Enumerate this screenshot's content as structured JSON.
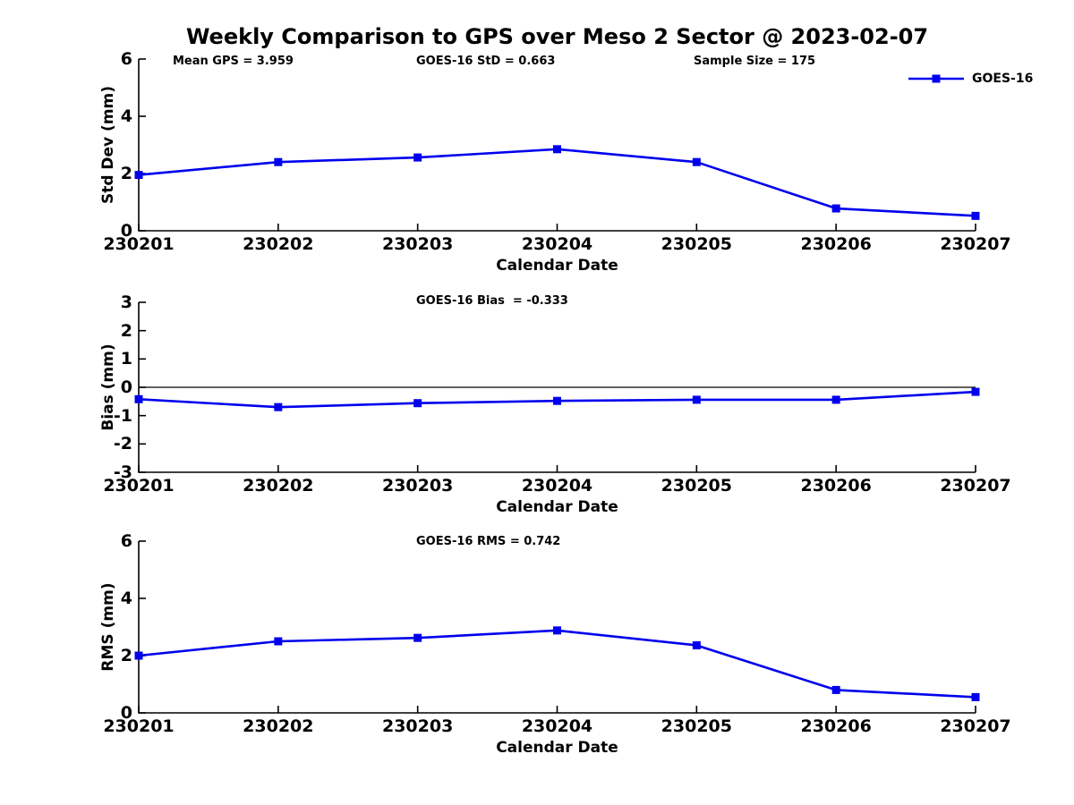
{
  "figure": {
    "title": "Weekly Comparison to GPS over Meso 2 Sector @ 2023-02-07"
  },
  "colors": {
    "series": "#0000EE",
    "axis": "#000000",
    "zero_line": "#000000",
    "text": "#000000",
    "background": "#FFFFFF"
  },
  "legend": {
    "label": "GOES-16",
    "position": "top-right",
    "marker": "filled-square"
  },
  "chart_data": [
    {
      "type": "line",
      "name": "std-dev-vs-date",
      "ylabel": "Std Dev (mm)",
      "xlabel": "Calendar Date",
      "ylim": [
        0,
        6
      ],
      "yticks": [
        0,
        2,
        4,
        6
      ],
      "grid": false,
      "zero_line": false,
      "legend_entry": "GOES-16",
      "categories": [
        "230201",
        "230202",
        "230203",
        "230204",
        "230205",
        "230206",
        "230207"
      ],
      "series": [
        {
          "name": "GOES-16",
          "values": [
            1.95,
            2.4,
            2.56,
            2.85,
            2.4,
            0.78,
            0.52
          ]
        }
      ],
      "annotations": [
        "Mean GPS = 3.959",
        "GOES-16 StD = 0.663",
        "Sample Size = 175"
      ]
    },
    {
      "type": "line",
      "name": "bias-vs-date",
      "ylabel": "Bias (mm)",
      "xlabel": "Calendar Date",
      "ylim": [
        -3,
        3
      ],
      "yticks": [
        -3,
        -2,
        -1,
        0,
        1,
        2,
        3
      ],
      "grid": false,
      "zero_line": true,
      "legend_entry": "GOES-16",
      "categories": [
        "230201",
        "230202",
        "230203",
        "230204",
        "230205",
        "230206",
        "230207"
      ],
      "series": [
        {
          "name": "GOES-16",
          "values": [
            -0.42,
            -0.7,
            -0.56,
            -0.48,
            -0.44,
            -0.44,
            -0.16
          ]
        }
      ],
      "annotations": [
        "GOES-16 Bias  = -0.333"
      ]
    },
    {
      "type": "line",
      "name": "rms-vs-date",
      "ylabel": "RMS (mm)",
      "xlabel": "Calendar Date",
      "ylim": [
        0,
        6
      ],
      "yticks": [
        0,
        2,
        4,
        6
      ],
      "grid": false,
      "zero_line": false,
      "legend_entry": "GOES-16",
      "categories": [
        "230201",
        "230202",
        "230203",
        "230204",
        "230205",
        "230206",
        "230207"
      ],
      "series": [
        {
          "name": "GOES-16",
          "values": [
            2.0,
            2.5,
            2.62,
            2.88,
            2.36,
            0.8,
            0.55
          ]
        }
      ],
      "annotations": [
        "GOES-16 RMS = 0.742"
      ]
    }
  ]
}
